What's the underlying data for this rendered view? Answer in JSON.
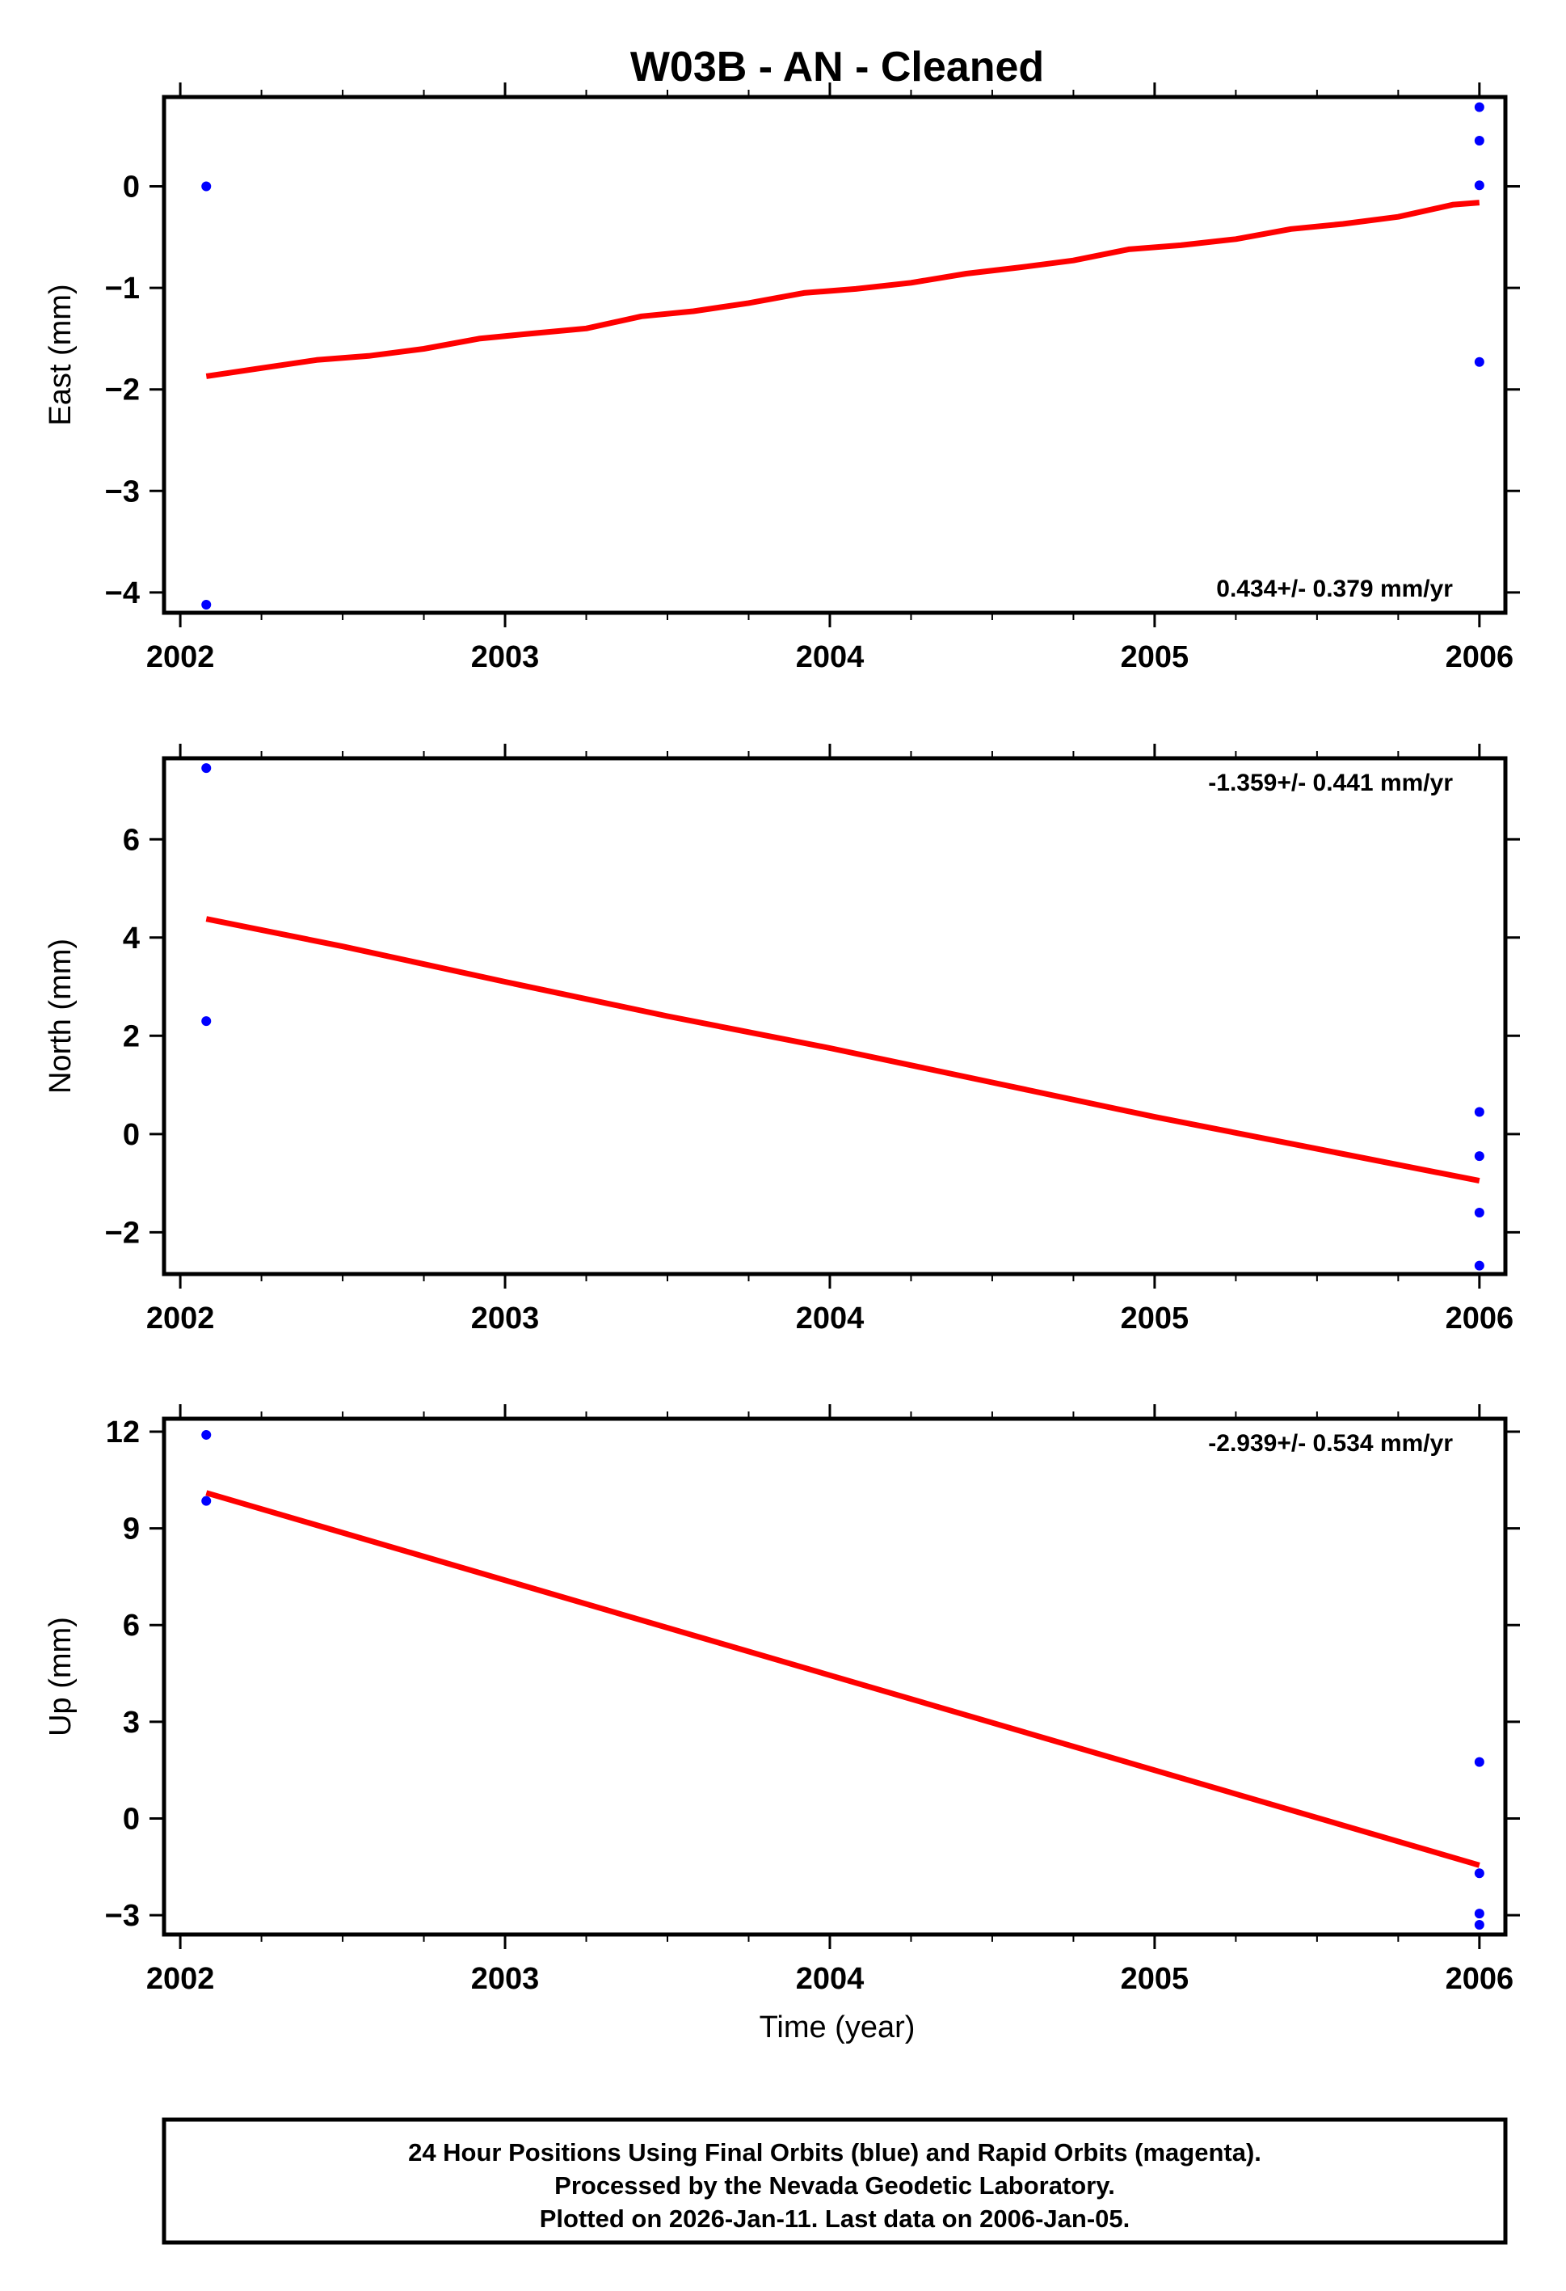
{
  "chart_data": {
    "title": "W03B  - AN - Cleaned",
    "x_axis": {
      "label": "Time (year)",
      "range": [
        2001.95,
        2006.08
      ],
      "major_ticks": [
        2002,
        2003,
        2004,
        2005,
        2006
      ],
      "tick_labels": [
        "2002",
        "2003",
        "2004",
        "2005",
        "2006"
      ],
      "minor_tick_step": 0.25
    },
    "panels": [
      {
        "type": "scatter",
        "ylabel": "East (mm)",
        "ylim": [
          -4.2,
          0.88
        ],
        "yticks": [
          0,
          -1,
          -2,
          -3,
          -4
        ],
        "ytick_labels": [
          "0",
          "−1",
          "−2",
          "−3",
          "−4"
        ],
        "rate_text": "0.434+/- 0.379 mm/yr",
        "rate_position": "bottom-right",
        "points": [
          {
            "x": 2002.08,
            "y": 0.0
          },
          {
            "x": 2002.08,
            "y": -4.12
          },
          {
            "x": 2006.0,
            "y": 0.78
          },
          {
            "x": 2006.0,
            "y": 0.45
          },
          {
            "x": 2006.0,
            "y": 0.01
          },
          {
            "x": 2006.0,
            "y": -1.73
          }
        ],
        "model": [
          {
            "x": 2002.08,
            "y": -1.87
          },
          {
            "x": 2002.25,
            "y": -1.79
          },
          {
            "x": 2002.42,
            "y": -1.71
          },
          {
            "x": 2002.58,
            "y": -1.67
          },
          {
            "x": 2002.75,
            "y": -1.6
          },
          {
            "x": 2002.92,
            "y": -1.5
          },
          {
            "x": 2003.08,
            "y": -1.45
          },
          {
            "x": 2003.25,
            "y": -1.4
          },
          {
            "x": 2003.42,
            "y": -1.28
          },
          {
            "x": 2003.58,
            "y": -1.23
          },
          {
            "x": 2003.75,
            "y": -1.15
          },
          {
            "x": 2003.92,
            "y": -1.05
          },
          {
            "x": 2004.08,
            "y": -1.01
          },
          {
            "x": 2004.25,
            "y": -0.95
          },
          {
            "x": 2004.42,
            "y": -0.86
          },
          {
            "x": 2004.58,
            "y": -0.8
          },
          {
            "x": 2004.75,
            "y": -0.73
          },
          {
            "x": 2004.92,
            "y": -0.62
          },
          {
            "x": 2005.08,
            "y": -0.58
          },
          {
            "x": 2005.25,
            "y": -0.52
          },
          {
            "x": 2005.42,
            "y": -0.42
          },
          {
            "x": 2005.58,
            "y": -0.37
          },
          {
            "x": 2005.75,
            "y": -0.3
          },
          {
            "x": 2005.92,
            "y": -0.18
          },
          {
            "x": 2006.0,
            "y": -0.16
          }
        ]
      },
      {
        "type": "scatter",
        "ylabel": "North (mm)",
        "ylim": [
          -2.85,
          7.65
        ],
        "yticks": [
          6,
          4,
          2,
          0,
          -2
        ],
        "ytick_labels": [
          "6",
          "4",
          "2",
          "0",
          "−2"
        ],
        "rate_text": "-1.359+/- 0.441 mm/yr",
        "rate_position": "top-right",
        "points": [
          {
            "x": 2002.08,
            "y": 7.45
          },
          {
            "x": 2002.08,
            "y": 2.3
          },
          {
            "x": 2006.0,
            "y": 0.45
          },
          {
            "x": 2006.0,
            "y": -0.45
          },
          {
            "x": 2006.0,
            "y": -1.6
          },
          {
            "x": 2006.0,
            "y": -2.68
          }
        ],
        "model": [
          {
            "x": 2002.08,
            "y": 4.38
          },
          {
            "x": 2002.5,
            "y": 3.82
          },
          {
            "x": 2003.0,
            "y": 3.1
          },
          {
            "x": 2003.5,
            "y": 2.4
          },
          {
            "x": 2004.0,
            "y": 1.75
          },
          {
            "x": 2004.5,
            "y": 1.05
          },
          {
            "x": 2005.0,
            "y": 0.35
          },
          {
            "x": 2005.5,
            "y": -0.3
          },
          {
            "x": 2006.0,
            "y": -0.95
          }
        ]
      },
      {
        "type": "scatter",
        "ylabel": "Up (mm)",
        "ylim": [
          -3.6,
          12.4
        ],
        "yticks": [
          12,
          9,
          6,
          3,
          0,
          -3
        ],
        "ytick_labels": [
          "12",
          "9",
          "6",
          "3",
          "0",
          "−3"
        ],
        "rate_text": "-2.939+/- 0.534 mm/yr",
        "rate_position": "top-right",
        "points": [
          {
            "x": 2002.08,
            "y": 11.9
          },
          {
            "x": 2002.08,
            "y": 9.85
          },
          {
            "x": 2006.0,
            "y": 1.75
          },
          {
            "x": 2006.0,
            "y": -1.7
          },
          {
            "x": 2006.0,
            "y": -2.95
          },
          {
            "x": 2006.0,
            "y": -3.3
          }
        ],
        "model": [
          {
            "x": 2002.08,
            "y": 10.1
          },
          {
            "x": 2006.0,
            "y": -1.45
          }
        ]
      }
    ],
    "point_color": "#0000ff",
    "model_color": "#ff0000",
    "footer_lines": [
      "24 Hour Positions Using Final Orbits (blue) and Rapid Orbits (magenta).",
      "Processed by the Nevada Geodetic Laboratory.",
      "Plotted on 2026-Jan-11. Last data on 2006-Jan-05."
    ]
  }
}
